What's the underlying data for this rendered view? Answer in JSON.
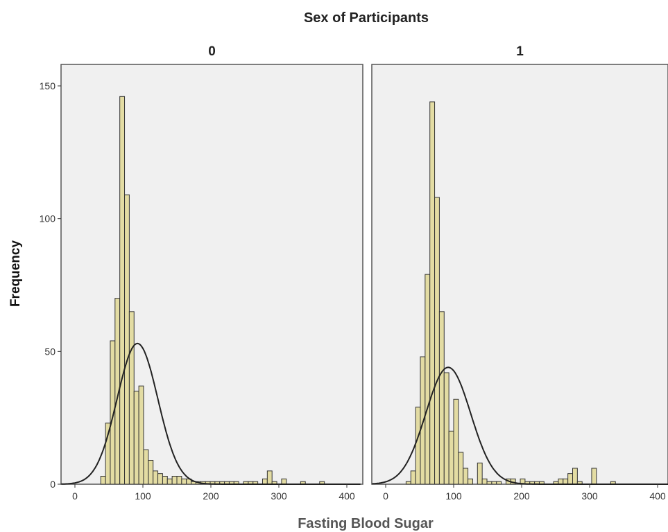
{
  "chart_data": {
    "type": "bar",
    "title": "Sex of Participants",
    "xlabel": "Fasting Blood Sugar",
    "ylabel": "Frequency",
    "xlim": [
      -20,
      420
    ],
    "ylim": [
      0,
      160
    ],
    "x_ticks": [
      0,
      100,
      200,
      300,
      400
    ],
    "y_ticks": [
      0,
      50,
      100,
      150
    ],
    "bin_width": 7,
    "normal_curve": true,
    "grid": false,
    "legend": "none",
    "colors": {
      "bar": "#e3dca3",
      "panel_bg": "#f0f0f0",
      "curve": "#222222"
    },
    "panels": [
      {
        "label": "0",
        "mean": 92,
        "sd": 30,
        "curve_peak": 53,
        "bins": [
          {
            "x": 38,
            "y": 3
          },
          {
            "x": 45,
            "y": 23
          },
          {
            "x": 52,
            "y": 54
          },
          {
            "x": 59,
            "y": 70
          },
          {
            "x": 66,
            "y": 146
          },
          {
            "x": 73,
            "y": 109
          },
          {
            "x": 80,
            "y": 65
          },
          {
            "x": 87,
            "y": 35
          },
          {
            "x": 94,
            "y": 37
          },
          {
            "x": 101,
            "y": 13
          },
          {
            "x": 108,
            "y": 9
          },
          {
            "x": 115,
            "y": 5
          },
          {
            "x": 122,
            "y": 4
          },
          {
            "x": 129,
            "y": 3
          },
          {
            "x": 136,
            "y": 2
          },
          {
            "x": 143,
            "y": 3
          },
          {
            "x": 150,
            "y": 3
          },
          {
            "x": 157,
            "y": 2
          },
          {
            "x": 164,
            "y": 2
          },
          {
            "x": 171,
            "y": 1
          },
          {
            "x": 178,
            "y": 1
          },
          {
            "x": 185,
            "y": 1
          },
          {
            "x": 192,
            "y": 1
          },
          {
            "x": 199,
            "y": 1
          },
          {
            "x": 206,
            "y": 1
          },
          {
            "x": 213,
            "y": 1
          },
          {
            "x": 220,
            "y": 1
          },
          {
            "x": 227,
            "y": 1
          },
          {
            "x": 234,
            "y": 1
          },
          {
            "x": 248,
            "y": 1
          },
          {
            "x": 255,
            "y": 1
          },
          {
            "x": 262,
            "y": 1
          },
          {
            "x": 276,
            "y": 2
          },
          {
            "x": 283,
            "y": 5
          },
          {
            "x": 290,
            "y": 1
          },
          {
            "x": 304,
            "y": 2
          },
          {
            "x": 332,
            "y": 1
          },
          {
            "x": 360,
            "y": 1
          }
        ]
      },
      {
        "label": "1",
        "mean": 92,
        "sd": 33,
        "curve_peak": 44,
        "bins": [
          {
            "x": 30,
            "y": 1
          },
          {
            "x": 37,
            "y": 5
          },
          {
            "x": 44,
            "y": 29
          },
          {
            "x": 51,
            "y": 48
          },
          {
            "x": 58,
            "y": 79
          },
          {
            "x": 65,
            "y": 144
          },
          {
            "x": 72,
            "y": 108
          },
          {
            "x": 79,
            "y": 65
          },
          {
            "x": 86,
            "y": 42
          },
          {
            "x": 93,
            "y": 20
          },
          {
            "x": 100,
            "y": 32
          },
          {
            "x": 107,
            "y": 12
          },
          {
            "x": 114,
            "y": 6
          },
          {
            "x": 121,
            "y": 2
          },
          {
            "x": 135,
            "y": 8
          },
          {
            "x": 142,
            "y": 2
          },
          {
            "x": 149,
            "y": 1
          },
          {
            "x": 156,
            "y": 1
          },
          {
            "x": 163,
            "y": 1
          },
          {
            "x": 177,
            "y": 2
          },
          {
            "x": 184,
            "y": 2
          },
          {
            "x": 198,
            "y": 2
          },
          {
            "x": 205,
            "y": 1
          },
          {
            "x": 212,
            "y": 1
          },
          {
            "x": 219,
            "y": 1
          },
          {
            "x": 226,
            "y": 1
          },
          {
            "x": 247,
            "y": 1
          },
          {
            "x": 254,
            "y": 2
          },
          {
            "x": 261,
            "y": 2
          },
          {
            "x": 268,
            "y": 4
          },
          {
            "x": 275,
            "y": 6
          },
          {
            "x": 282,
            "y": 1
          },
          {
            "x": 303,
            "y": 6
          },
          {
            "x": 331,
            "y": 1
          }
        ]
      }
    ]
  }
}
